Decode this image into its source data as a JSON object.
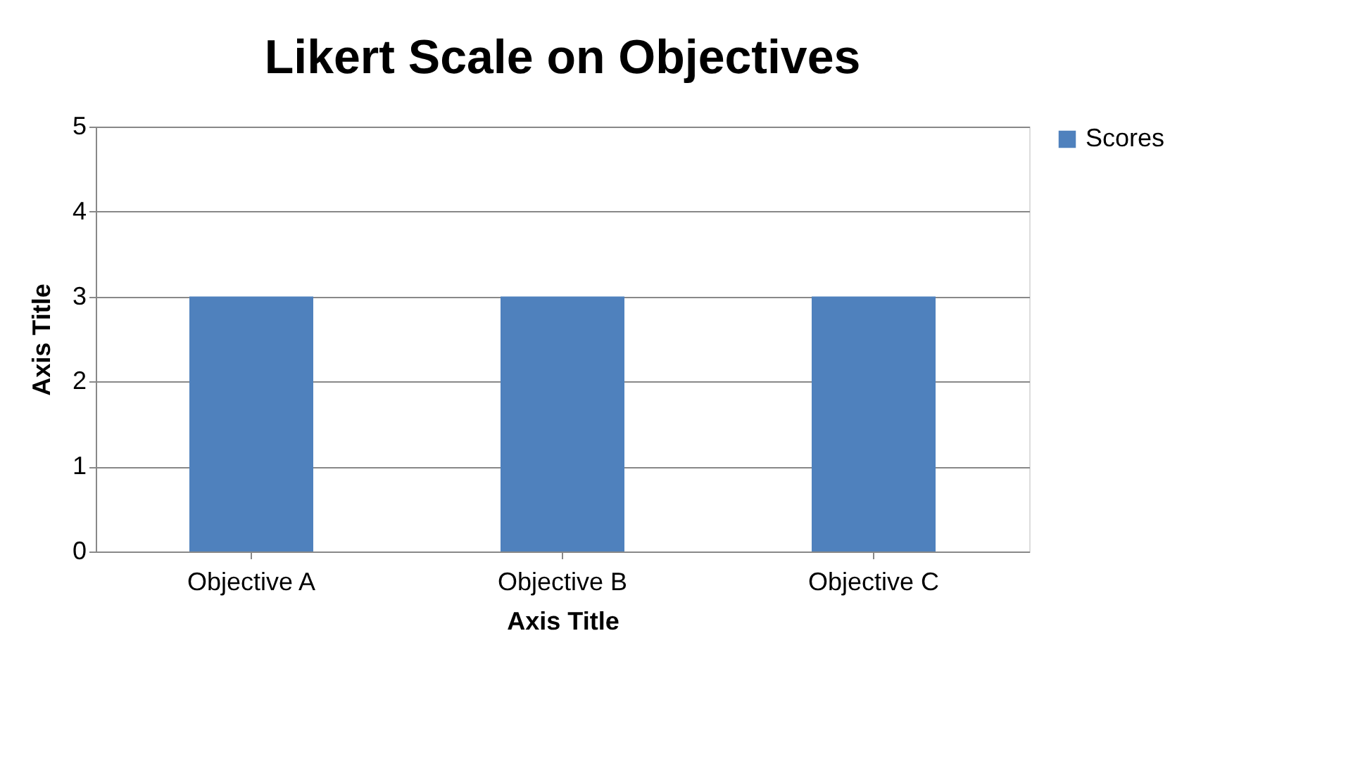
{
  "chart_data": {
    "type": "bar",
    "title": "Likert Scale on Objectives",
    "xlabel": "Axis Title",
    "ylabel": "Axis Title",
    "categories": [
      "Objective A",
      "Objective B",
      "Objective C"
    ],
    "series": [
      {
        "name": "Scores",
        "color": "#4f81bd",
        "values": [
          3,
          3,
          3
        ]
      }
    ],
    "ylim": [
      0,
      5
    ],
    "yticks": [
      0,
      1,
      2,
      3,
      4,
      5
    ],
    "grid": "y",
    "legend": "right"
  }
}
